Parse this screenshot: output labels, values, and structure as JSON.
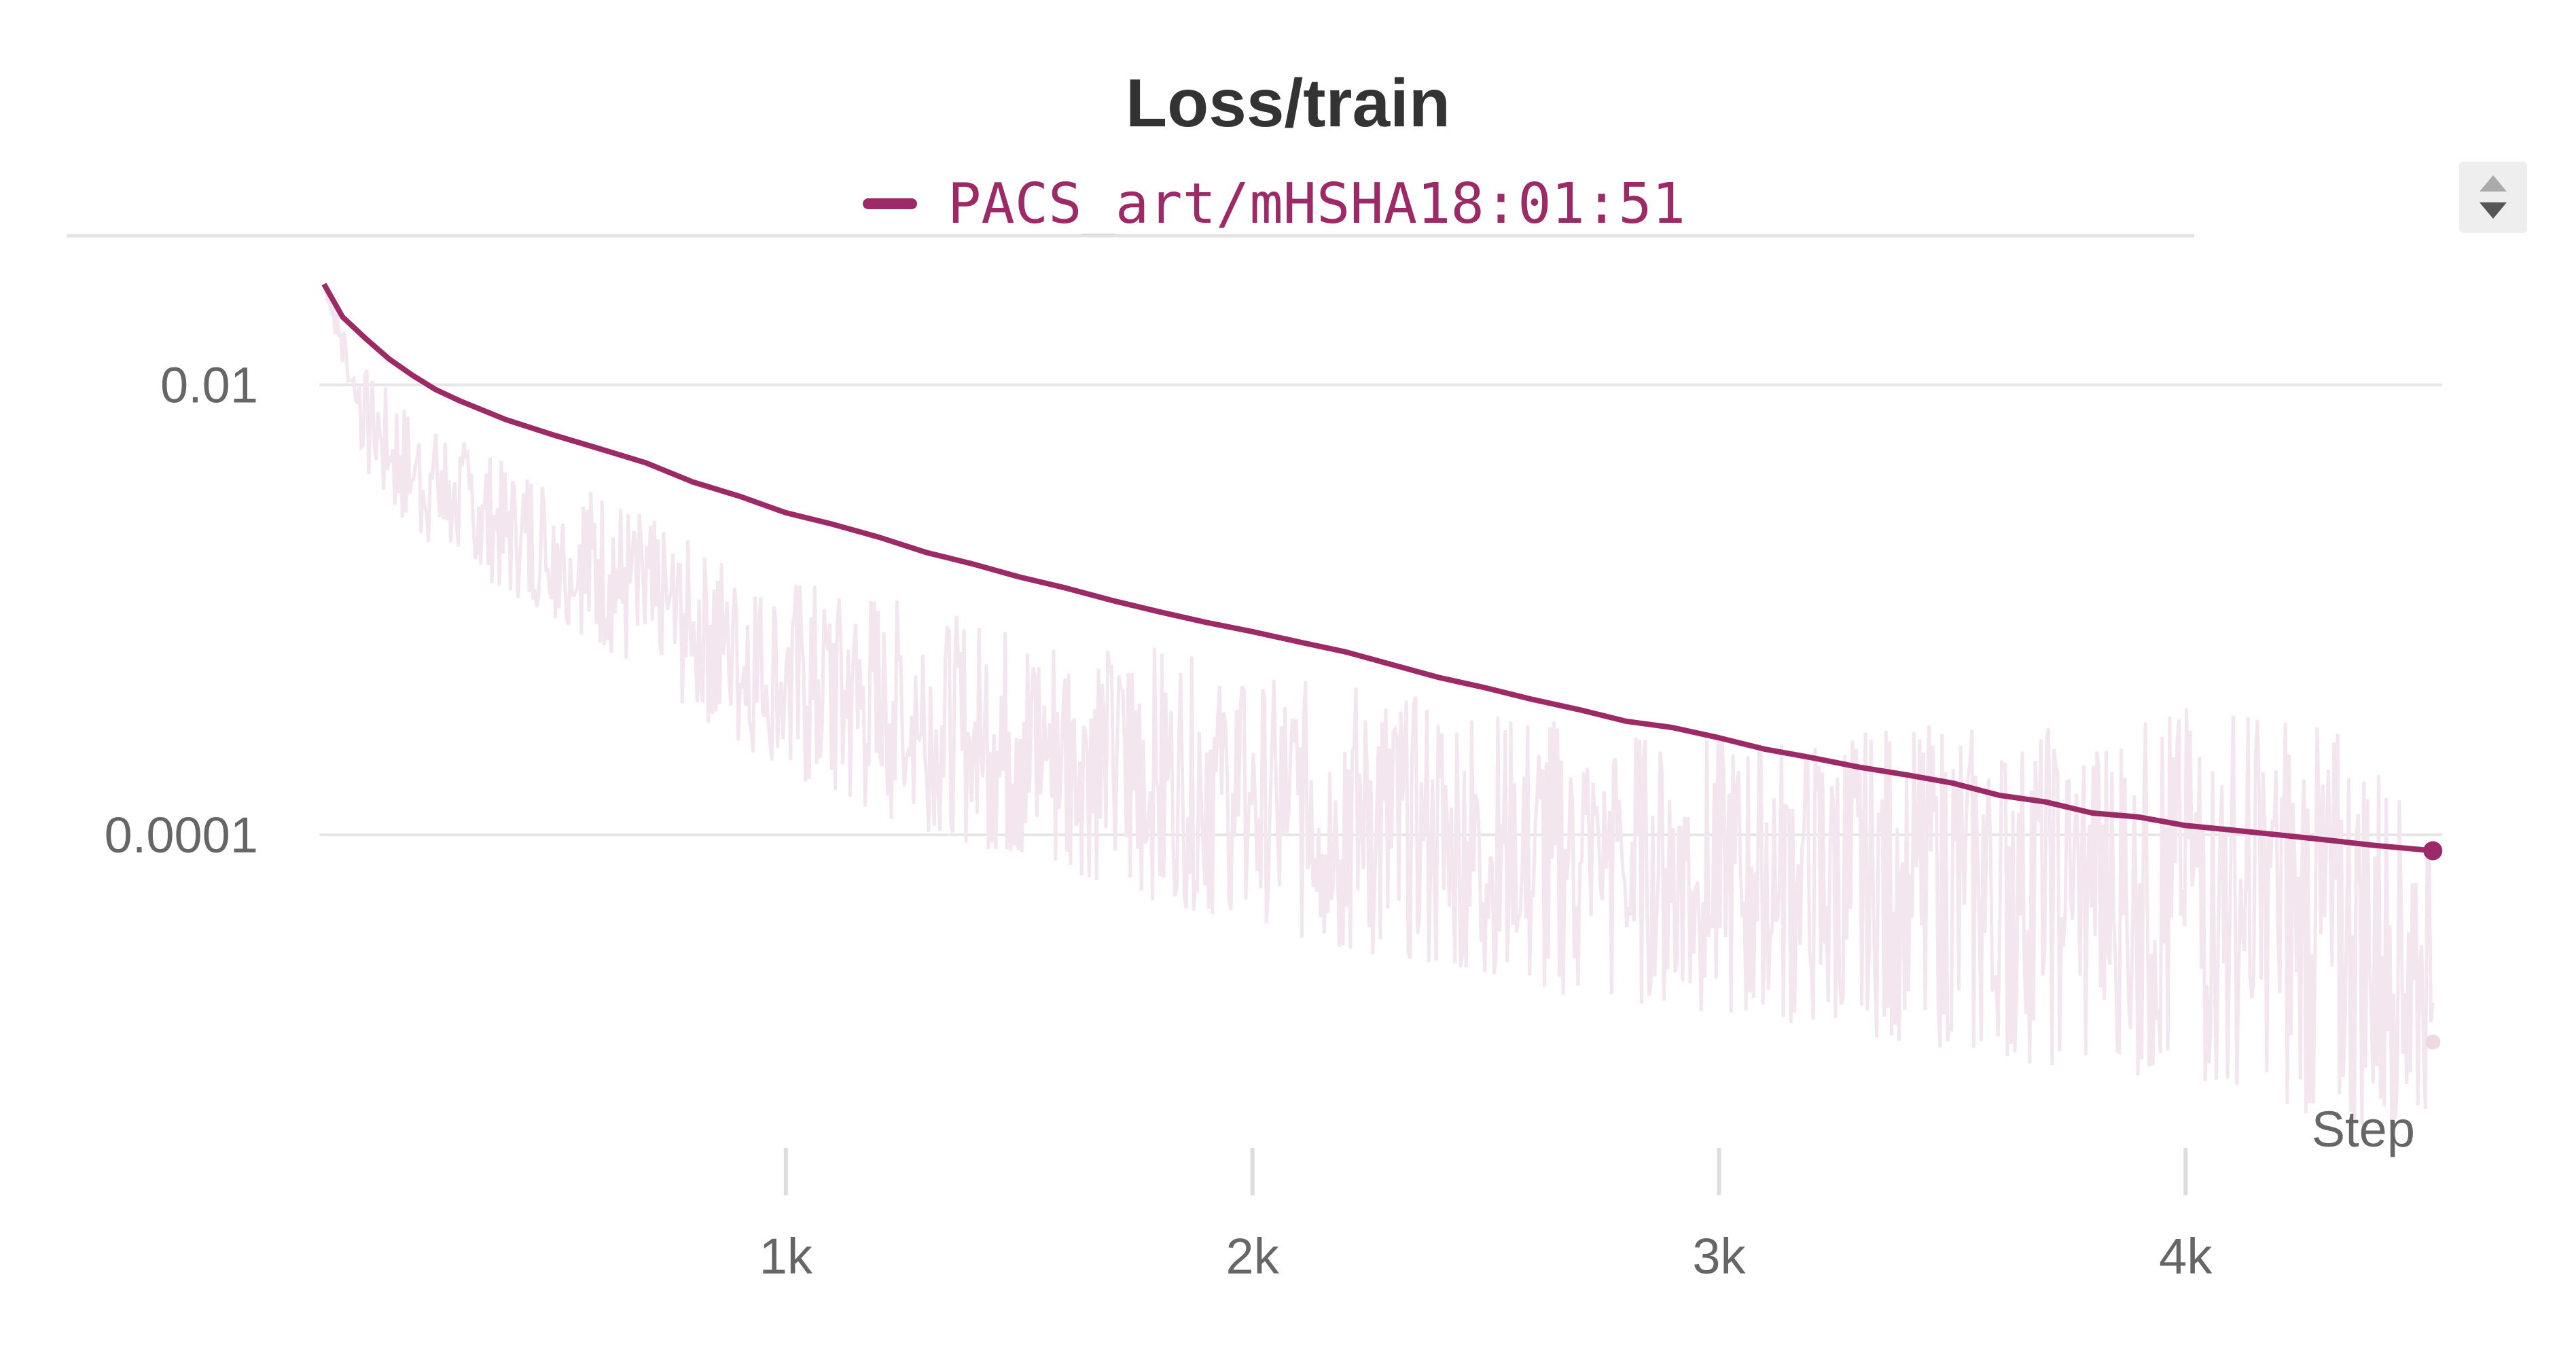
{
  "chart_data": {
    "type": "line",
    "title": "Loss/train",
    "xlabel": "Step",
    "ylabel": "",
    "y_scale": "log",
    "xlim": [
      0,
      4550
    ],
    "ylim": [
      2.5e-06,
      0.045
    ],
    "x_ticks": [
      {
        "value": 1000,
        "label": "1k"
      },
      {
        "value": 2000,
        "label": "2k"
      },
      {
        "value": 3000,
        "label": "3k"
      },
      {
        "value": 4000,
        "label": "4k"
      }
    ],
    "y_ticks": [
      {
        "value": 0.01,
        "label": "0.01"
      },
      {
        "value": 0.0001,
        "label": "0.0001"
      }
    ],
    "grid": true,
    "legend_position": "top-center",
    "series": [
      {
        "name": "PACS_art/mHSHA18:01:51",
        "color": "#9c2a66",
        "raw_color": "#f3e6ee",
        "smoothed": [
          [
            10,
            0.028
          ],
          [
            50,
            0.02
          ],
          [
            100,
            0.016
          ],
          [
            150,
            0.013
          ],
          [
            200,
            0.011
          ],
          [
            250,
            0.0095
          ],
          [
            300,
            0.0085
          ],
          [
            400,
            0.007
          ],
          [
            500,
            0.006
          ],
          [
            600,
            0.0052
          ],
          [
            700,
            0.0045
          ],
          [
            800,
            0.0037
          ],
          [
            900,
            0.0032
          ],
          [
            1000,
            0.0027
          ],
          [
            1100,
            0.0024
          ],
          [
            1200,
            0.0021
          ],
          [
            1300,
            0.0018
          ],
          [
            1400,
            0.0016
          ],
          [
            1500,
            0.0014
          ],
          [
            1600,
            0.00125
          ],
          [
            1700,
            0.0011
          ],
          [
            1800,
            0.00098
          ],
          [
            1900,
            0.00088
          ],
          [
            2000,
            0.0008
          ],
          [
            2100,
            0.00072
          ],
          [
            2200,
            0.00065
          ],
          [
            2300,
            0.00057
          ],
          [
            2400,
            0.0005
          ],
          [
            2500,
            0.00045
          ],
          [
            2600,
            0.0004
          ],
          [
            2700,
            0.00036
          ],
          [
            2800,
            0.00032
          ],
          [
            2900,
            0.0003
          ],
          [
            3000,
            0.00027
          ],
          [
            3100,
            0.00024
          ],
          [
            3200,
            0.00022
          ],
          [
            3300,
            0.0002
          ],
          [
            3400,
            0.000185
          ],
          [
            3500,
            0.00017
          ],
          [
            3600,
            0.00015
          ],
          [
            3700,
            0.00014
          ],
          [
            3800,
            0.000125
          ],
          [
            3900,
            0.00012
          ],
          [
            4000,
            0.00011
          ],
          [
            4100,
            0.000105
          ],
          [
            4200,
            0.0001
          ],
          [
            4300,
            9.5e-05
          ],
          [
            4400,
            9e-05
          ],
          [
            4530,
            8.5e-05
          ]
        ],
        "raw_envelope": [
          [
            10,
            0.028,
            0.028
          ],
          [
            100,
            0.004,
            0.012
          ],
          [
            200,
            0.0022,
            0.0075
          ],
          [
            400,
            0.0012,
            0.0045
          ],
          [
            600,
            0.0007,
            0.0035
          ],
          [
            800,
            0.00035,
            0.002
          ],
          [
            1000,
            0.00018,
            0.0014
          ],
          [
            1200,
            0.00012,
            0.0012
          ],
          [
            1400,
            9e-05,
            0.0009
          ],
          [
            1600,
            7e-05,
            0.0008
          ],
          [
            1800,
            5e-05,
            0.0007
          ],
          [
            2000,
            4e-05,
            0.0005
          ],
          [
            2200,
            3e-05,
            0.0005
          ],
          [
            2400,
            2.5e-05,
            0.0004
          ],
          [
            2600,
            2e-05,
            0.00035
          ],
          [
            2800,
            1.8e-05,
            0.0003
          ],
          [
            3000,
            1.6e-05,
            0.00028
          ],
          [
            3200,
            1.4e-05,
            0.00028
          ],
          [
            3400,
            1.2e-05,
            0.00032
          ],
          [
            3600,
            1e-05,
            0.00032
          ],
          [
            3800,
            9e-06,
            0.00034
          ],
          [
            4000,
            8e-06,
            0.0004
          ],
          [
            4200,
            6e-06,
            0.0004
          ],
          [
            4400,
            5e-06,
            0.00025
          ],
          [
            4530,
            6e-06,
            9e-05
          ]
        ],
        "raw_last": [
          4530,
          1.2e-05
        ]
      }
    ]
  }
}
